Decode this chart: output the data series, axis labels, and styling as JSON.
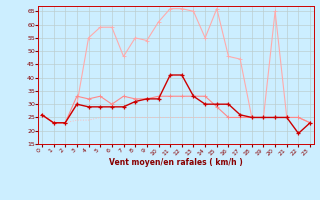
{
  "xlabel": "Vent moyen/en rafales ( km/h )",
  "x": [
    0,
    1,
    2,
    3,
    4,
    5,
    6,
    7,
    8,
    9,
    10,
    11,
    12,
    13,
    14,
    15,
    16,
    17,
    18,
    19,
    20,
    21,
    22,
    23
  ],
  "gust_upper": [
    26,
    23,
    23,
    30,
    55,
    59,
    59,
    48,
    55,
    54,
    61,
    66,
    66,
    65,
    55,
    66,
    48,
    47,
    25,
    25,
    65,
    25,
    25,
    23
  ],
  "gust_mid": [
    26,
    23,
    23,
    33,
    32,
    33,
    30,
    33,
    32,
    32,
    33,
    33,
    33,
    33,
    33,
    29,
    25,
    25,
    25,
    25,
    25,
    25,
    25,
    23
  ],
  "flat_line": [
    26,
    23,
    23,
    24,
    24,
    25,
    25,
    25,
    25,
    25,
    25,
    25,
    25,
    25,
    25,
    25,
    25,
    25,
    25,
    25,
    25,
    25,
    25,
    23
  ],
  "mean_wind": [
    26,
    23,
    23,
    30,
    29,
    29,
    29,
    29,
    31,
    32,
    32,
    41,
    41,
    33,
    30,
    30,
    30,
    26,
    25,
    25,
    25,
    25,
    19,
    23
  ],
  "ylim": [
    15,
    67
  ],
  "xlim": [
    0,
    23
  ],
  "yticks": [
    15,
    20,
    25,
    30,
    35,
    40,
    45,
    50,
    55,
    60,
    65
  ],
  "xticks": [
    0,
    1,
    2,
    3,
    4,
    5,
    6,
    7,
    8,
    9,
    10,
    11,
    12,
    13,
    14,
    15,
    16,
    17,
    18,
    19,
    20,
    21,
    22,
    23
  ],
  "bg_color": "#cceeff",
  "grid_color": "#bbcccc",
  "color_upper": "#ffaaaa",
  "color_mid": "#ff8888",
  "color_flat": "#ffbbbb",
  "color_mean": "#cc0000"
}
